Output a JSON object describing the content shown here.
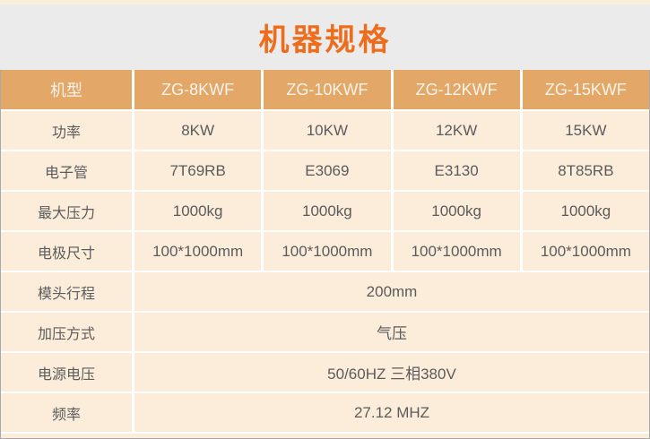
{
  "page": {
    "title": "机器规格",
    "colors": {
      "title_text": "#ee6d1d",
      "banner_bg": "#ebebeb",
      "header_bg": "#e3a768",
      "header_text": "#faf4ea",
      "cell_bg": "#fcedda",
      "cell_text": "#5b5b5d",
      "border": "#a9a9a9",
      "top_strip_bg": "#fbeed8"
    }
  },
  "table": {
    "header": {
      "label": "机型",
      "columns": [
        "ZG-8KWF",
        "ZG-10KWF",
        "ZG-12KWF",
        "ZG-15KWF"
      ]
    },
    "rows": [
      {
        "label": "功率",
        "values": [
          "8KW",
          "10KW",
          "12KW",
          "15KW"
        ]
      },
      {
        "label": "电子管",
        "values": [
          "7T69RB",
          "E3069",
          "E3130",
          "8T85RB"
        ]
      },
      {
        "label": "最大压力",
        "values": [
          "1000kg",
          "1000kg",
          "1000kg",
          "1000kg"
        ]
      },
      {
        "label": "电极尺寸",
        "values": [
          "100*1000mm",
          "100*1000mm",
          "100*1000mm",
          "100*1000mm"
        ]
      },
      {
        "label": "模头行程",
        "span": "200mm"
      },
      {
        "label": "加压方式",
        "span": "气压"
      },
      {
        "label": "电源电压",
        "span": "50/60HZ 三相380V"
      },
      {
        "label": "频率",
        "span": "27.12 MHZ"
      }
    ]
  },
  "chart_data": {
    "type": "table",
    "title": "机器规格",
    "columns": [
      "机型",
      "ZG-8KWF",
      "ZG-10KWF",
      "ZG-12KWF",
      "ZG-15KWF"
    ],
    "rows": [
      [
        "功率",
        "8KW",
        "10KW",
        "12KW",
        "15KW"
      ],
      [
        "电子管",
        "7T69RB",
        "E3069",
        "E3130",
        "8T85RB"
      ],
      [
        "最大压力",
        "1000kg",
        "1000kg",
        "1000kg",
        "1000kg"
      ],
      [
        "电极尺寸",
        "100*1000mm",
        "100*1000mm",
        "100*1000mm",
        "100*1000mm"
      ],
      [
        "模头行程",
        "200mm",
        "200mm",
        "200mm",
        "200mm"
      ],
      [
        "加压方式",
        "气压",
        "气压",
        "气压",
        "气压"
      ],
      [
        "电源电压",
        "50/60HZ 三相380V",
        "50/60HZ 三相380V",
        "50/60HZ 三相380V",
        "50/60HZ 三相380V"
      ],
      [
        "频率",
        "27.12 MHZ",
        "27.12 MHZ",
        "27.12 MHZ",
        "27.12 MHZ"
      ]
    ]
  }
}
